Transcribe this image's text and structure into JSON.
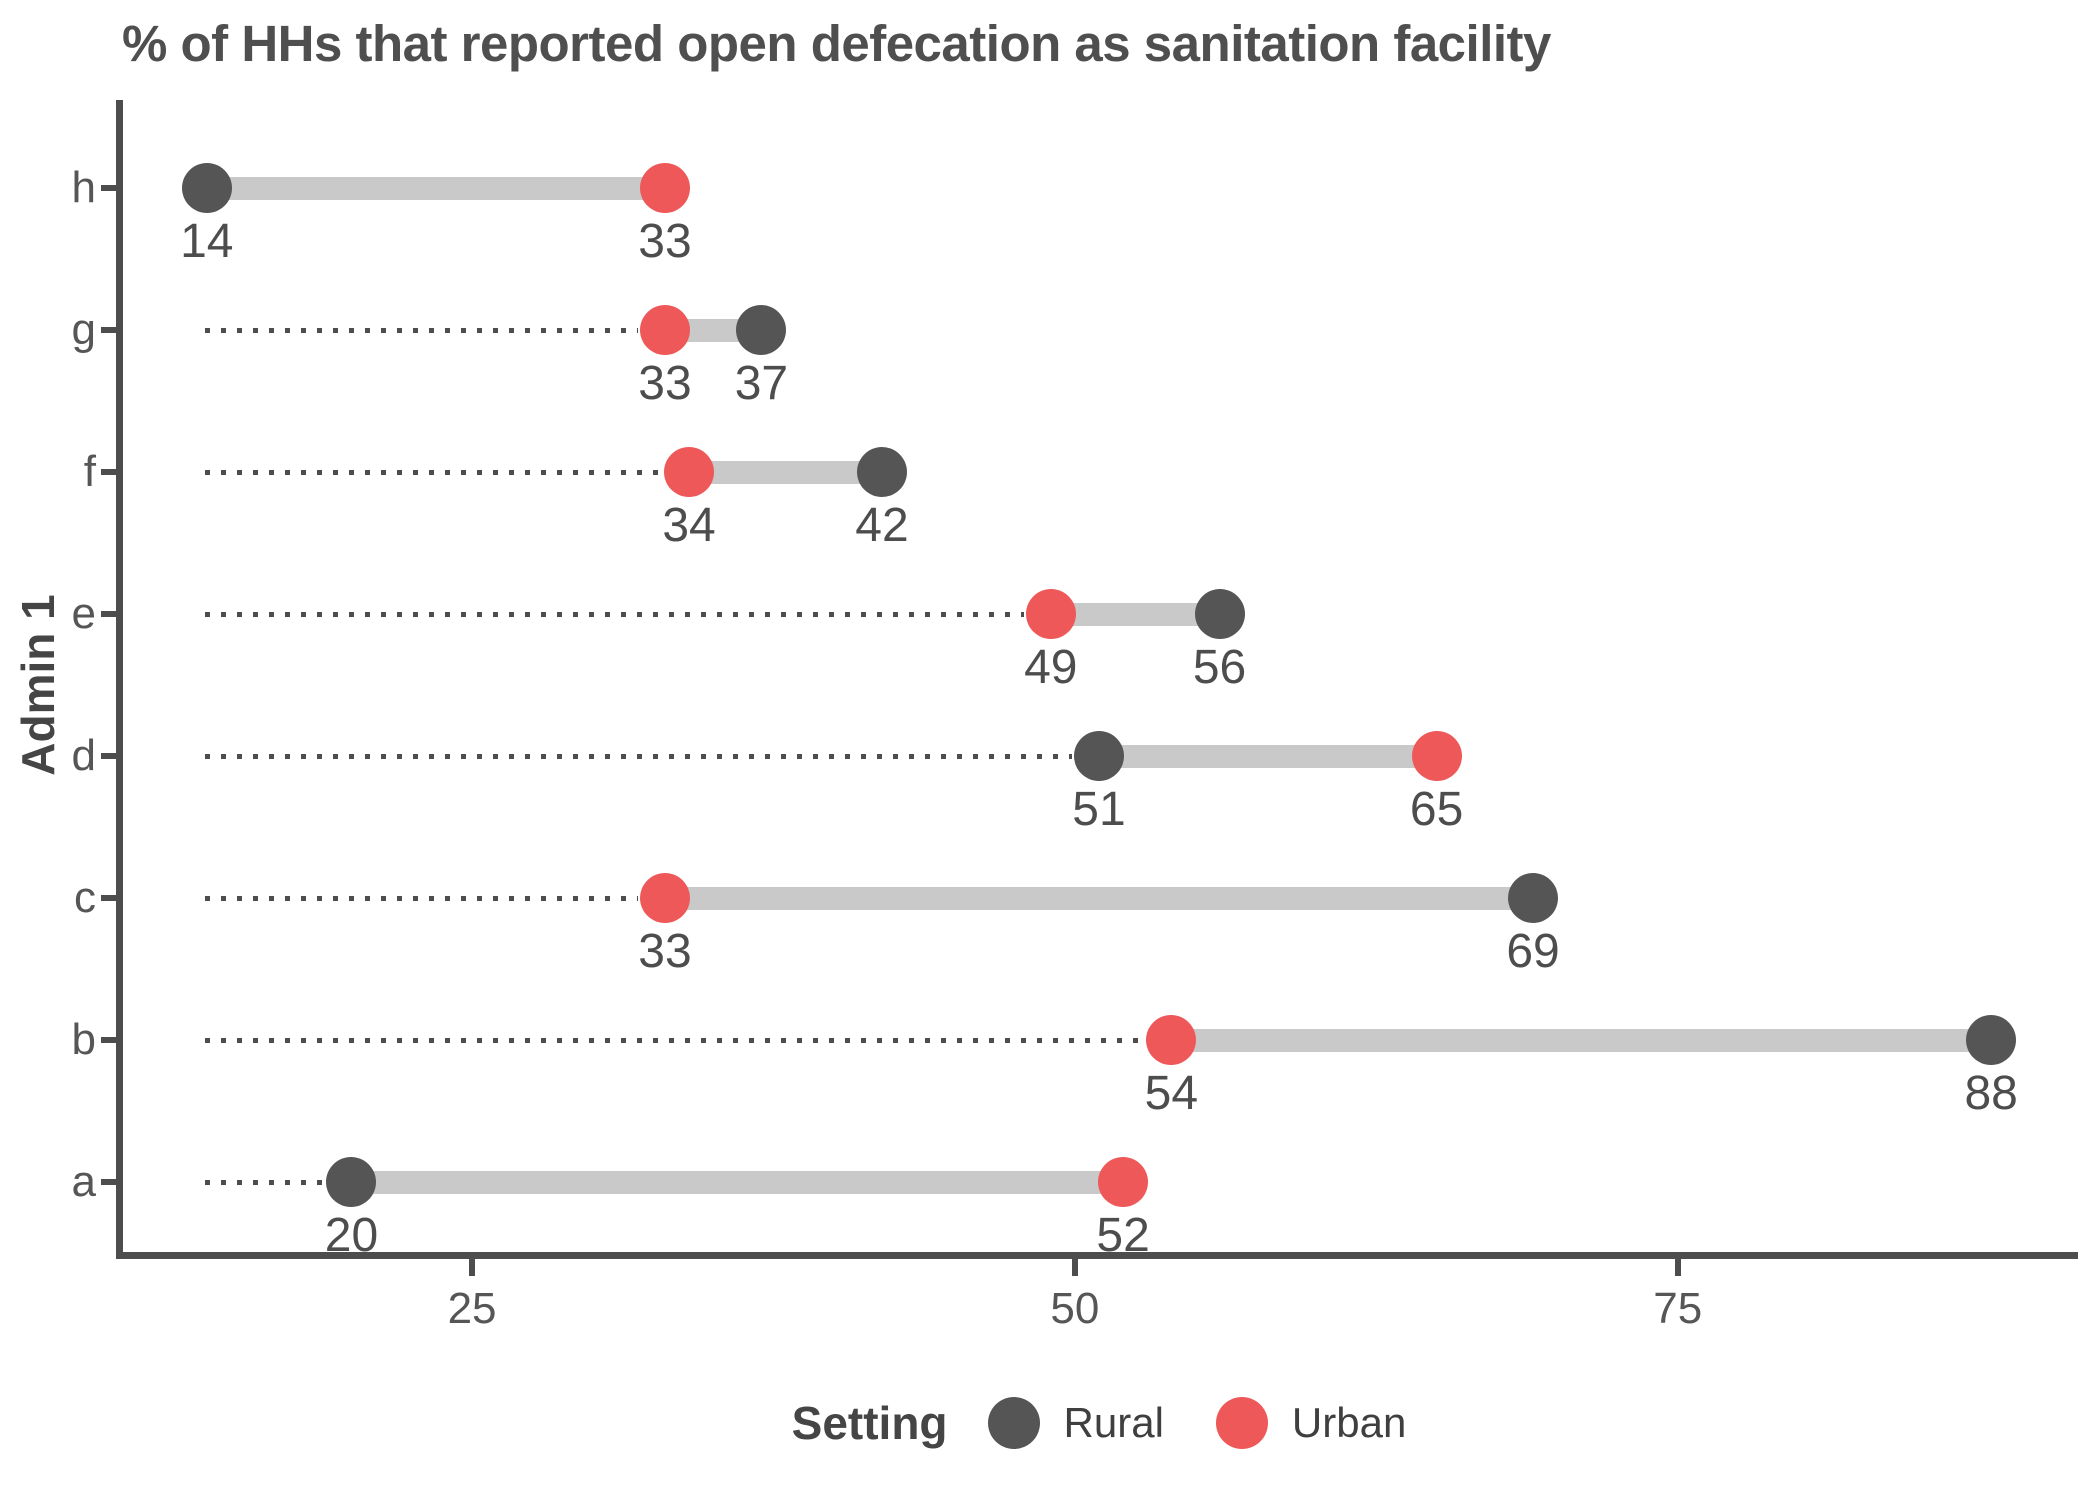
{
  "chart_data": {
    "type": "scatter",
    "subtype": "dumbbell",
    "title": "% of HHs that reported open defecation as sanitation facility",
    "xlabel": "",
    "ylabel": "Admin 1",
    "legend_title": "Setting",
    "legend_position": "bottom",
    "categories": [
      "h",
      "g",
      "f",
      "e",
      "d",
      "c",
      "b",
      "a"
    ],
    "series": [
      {
        "name": "Rural",
        "color": "#555555",
        "values": [
          14,
          37,
          42,
          56,
          51,
          69,
          88,
          20
        ]
      },
      {
        "name": "Urban",
        "color": "#ee5859",
        "values": [
          33,
          33,
          34,
          49,
          65,
          33,
          54,
          52
        ]
      }
    ],
    "x_ticks": [
      "25",
      "50",
      "75"
    ],
    "x_tick_values": [
      25,
      50,
      75
    ],
    "xlim": [
      10.4,
      91.6
    ],
    "leader_line_start": 14,
    "grid": false,
    "connector_color": "#c9c9c9",
    "dotted_line_color": "#4d4d4d",
    "value_label_color": "#4d4d4d",
    "axis_color": "#4d4d4d"
  }
}
